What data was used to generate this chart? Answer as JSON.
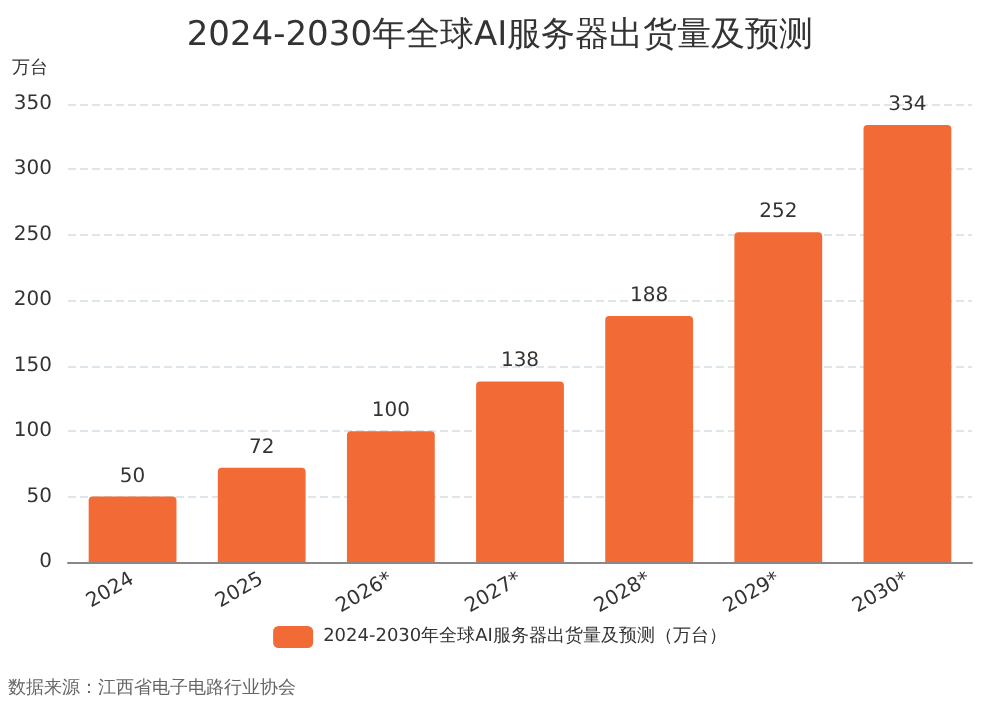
{
  "chart_data": {
    "type": "bar",
    "title": "2024-2030年全球AI服务器出货量及预测",
    "ylabel": "万台",
    "categories": [
      "2024",
      "2025",
      "2026*",
      "2027*",
      "2028*",
      "2029*",
      "2030*"
    ],
    "series": [
      {
        "name": "2024-2030年全球AI服务器出货量及预测（万台）",
        "color": "#f26a35",
        "values": [
          50,
          72,
          100,
          138,
          188,
          252,
          334
        ]
      }
    ],
    "ylim": [
      0,
      350
    ],
    "yticks": [
      0,
      50,
      100,
      150,
      200,
      250,
      300,
      350
    ],
    "grid": "y",
    "legend": "bottom",
    "data_labels": true,
    "annotations": [
      "数据来源：江西省电子电路行业协会"
    ]
  }
}
